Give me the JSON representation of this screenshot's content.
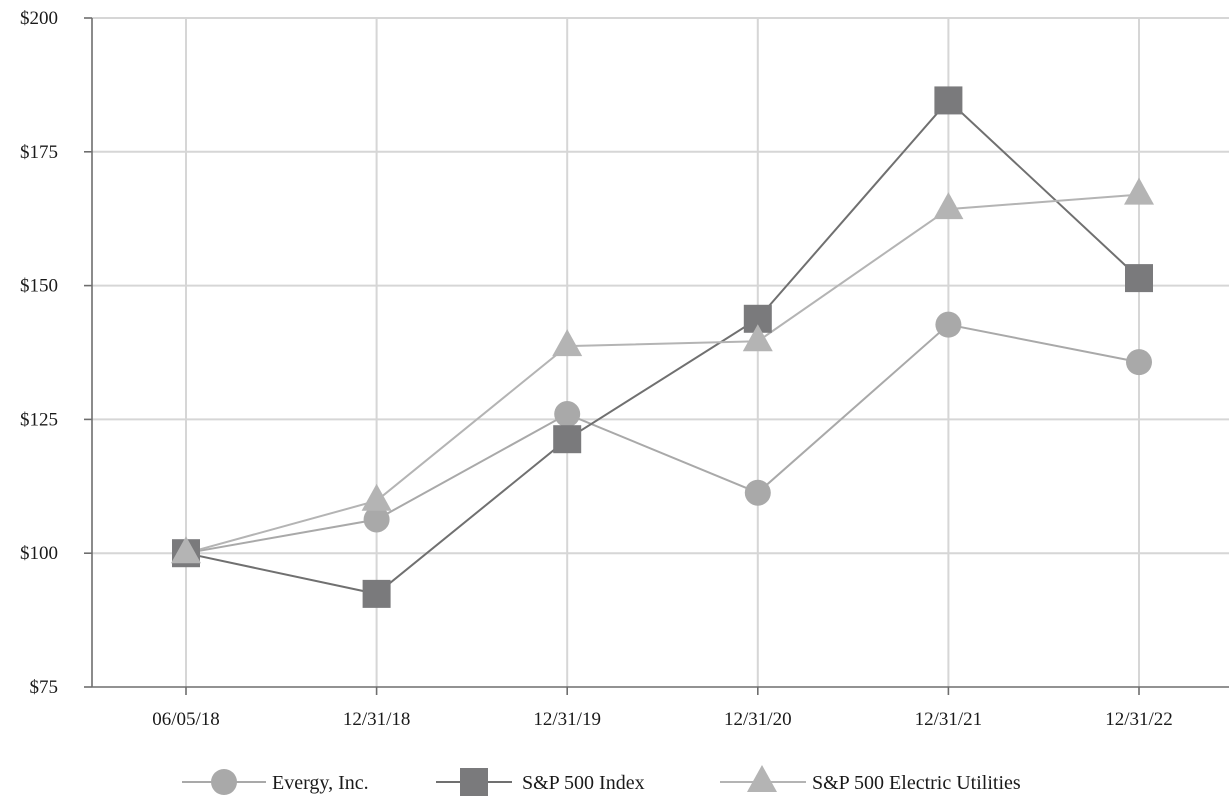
{
  "chart_data": {
    "type": "line",
    "title": "",
    "xlabel": "",
    "ylabel": "",
    "categories": [
      "06/05/18",
      "12/31/18",
      "12/31/19",
      "12/31/20",
      "12/31/21",
      "12/31/22"
    ],
    "ylim": [
      75,
      200
    ],
    "yticks": [
      75,
      100,
      125,
      150,
      175,
      200
    ],
    "ytick_labels": [
      "$75",
      "$100",
      "$125",
      "$150",
      "$175",
      "$200"
    ],
    "grid": true,
    "legend_position": "bottom",
    "series": [
      {
        "name": "Evergy, Inc.",
        "marker": "circle",
        "color": "#a9a9a9",
        "line_color": "#a9a9a9",
        "values": [
          100,
          106.3,
          126.0,
          111.3,
          142.7,
          135.7
        ]
      },
      {
        "name": "S&P 500 Index",
        "marker": "square",
        "color": "#7a7a7c",
        "line_color": "#707070",
        "values": [
          100,
          92.4,
          121.3,
          143.8,
          184.6,
          151.4
        ]
      },
      {
        "name": "S&P 500 Electric Utilities",
        "marker": "triangle",
        "color": "#b4b4b4",
        "line_color": "#b4b4b4",
        "values": [
          100,
          109.8,
          138.7,
          139.6,
          164.3,
          167.0
        ]
      }
    ]
  }
}
